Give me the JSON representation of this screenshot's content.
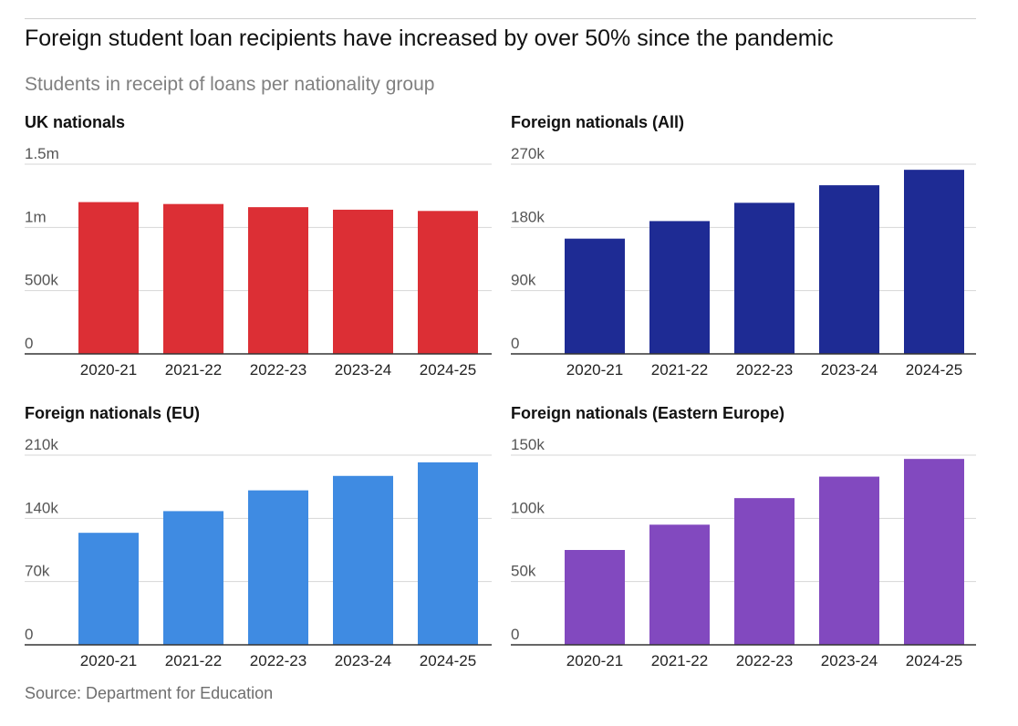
{
  "title": "Foreign student loan recipients have increased by over 50% since the pandemic",
  "subtitle": "Students in receipt of loans per nationality group",
  "source": "Source: Department for Education",
  "chart_data": [
    {
      "type": "bar",
      "title": "UK nationals",
      "categories": [
        "2020-21",
        "2021-22",
        "2022-23",
        "2023-24",
        "2024-25"
      ],
      "values": [
        1200000,
        1185000,
        1160000,
        1140000,
        1130000
      ],
      "ylim": [
        0,
        1500000
      ],
      "yticks": [
        0,
        500000,
        1000000,
        1500000
      ],
      "ytick_labels": [
        "0",
        "500k",
        "1m",
        "1.5m"
      ],
      "color": "#dc2f35",
      "grid": true
    },
    {
      "type": "bar",
      "title": "Foreign nationals (All)",
      "categories": [
        "2020-21",
        "2021-22",
        "2022-23",
        "2023-24",
        "2024-25"
      ],
      "values": [
        164000,
        189000,
        215000,
        240000,
        262000
      ],
      "ylim": [
        0,
        270000
      ],
      "yticks": [
        0,
        90000,
        180000,
        270000
      ],
      "ytick_labels": [
        "0",
        "90k",
        "180k",
        "270k"
      ],
      "color": "#1e2b94",
      "grid": true
    },
    {
      "type": "bar",
      "title": "Foreign nationals (EU)",
      "categories": [
        "2020-21",
        "2021-22",
        "2022-23",
        "2023-24",
        "2024-25"
      ],
      "values": [
        124000,
        148000,
        171000,
        187000,
        202000
      ],
      "ylim": [
        0,
        210000
      ],
      "yticks": [
        0,
        70000,
        140000,
        210000
      ],
      "ytick_labels": [
        "0",
        "70k",
        "140k",
        "210k"
      ],
      "color": "#3f8be2",
      "grid": true
    },
    {
      "type": "bar",
      "title": "Foreign nationals (Eastern Europe)",
      "categories": [
        "2020-21",
        "2021-22",
        "2022-23",
        "2023-24",
        "2024-25"
      ],
      "values": [
        75000,
        95000,
        116000,
        133000,
        147000
      ],
      "ylim": [
        0,
        150000
      ],
      "yticks": [
        0,
        50000,
        100000,
        150000
      ],
      "ytick_labels": [
        "0",
        "50k",
        "100k",
        "150k"
      ],
      "color": "#8249bf",
      "grid": true
    }
  ]
}
